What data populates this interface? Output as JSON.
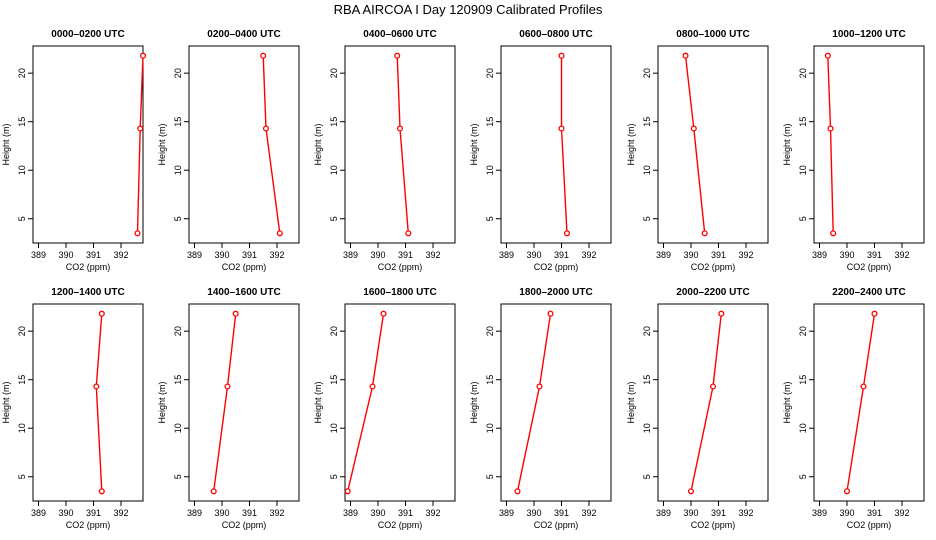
{
  "figure": {
    "title": "RBA AIRCOA I  Day 120909  Calibrated Profiles"
  },
  "colors": {
    "series": "#ff0000",
    "axis": "#000000",
    "background": "#ffffff"
  },
  "chart_data": [
    {
      "type": "line",
      "title": "0000–0200 UTC",
      "xlabel": "CO2 (ppm)",
      "ylabel": "Height (m)",
      "xlim": [
        388.8,
        392.8
      ],
      "ylim": [
        2.5,
        22.8
      ],
      "xticks": [
        "389",
        "390",
        "391",
        "392"
      ],
      "yticks": [
        "5",
        "10",
        "15",
        "20"
      ],
      "x": [
        392.6,
        392.7,
        392.8
      ],
      "y": [
        3.5,
        14.3,
        21.8
      ]
    },
    {
      "type": "line",
      "title": "0200–0400 UTC",
      "xlabel": "CO2 (ppm)",
      "ylabel": "Height (m)",
      "xlim": [
        388.8,
        392.8
      ],
      "ylim": [
        2.5,
        22.8
      ],
      "xticks": [
        "389",
        "390",
        "391",
        "392"
      ],
      "yticks": [
        "5",
        "10",
        "15",
        "20"
      ],
      "x": [
        392.1,
        391.6,
        391.5
      ],
      "y": [
        3.5,
        14.3,
        21.8
      ]
    },
    {
      "type": "line",
      "title": "0400–0600 UTC",
      "xlabel": "CO2 (ppm)",
      "ylabel": "Height (m)",
      "xlim": [
        388.8,
        392.8
      ],
      "ylim": [
        2.5,
        22.8
      ],
      "xticks": [
        "389",
        "390",
        "391",
        "392"
      ],
      "yticks": [
        "5",
        "10",
        "15",
        "20"
      ],
      "x": [
        391.1,
        390.8,
        390.7
      ],
      "y": [
        3.5,
        14.3,
        21.8
      ]
    },
    {
      "type": "line",
      "title": "0600–0800 UTC",
      "xlabel": "CO2 (ppm)",
      "ylabel": "Height (m)",
      "xlim": [
        388.8,
        392.8
      ],
      "ylim": [
        2.5,
        22.8
      ],
      "xticks": [
        "389",
        "390",
        "391",
        "392"
      ],
      "yticks": [
        "5",
        "10",
        "15",
        "20"
      ],
      "x": [
        391.2,
        391.0,
        391.0
      ],
      "y": [
        3.5,
        14.3,
        21.8
      ]
    },
    {
      "type": "line",
      "title": "0800–1000 UTC",
      "xlabel": "CO2 (ppm)",
      "ylabel": "Height (m)",
      "xlim": [
        388.8,
        392.8
      ],
      "ylim": [
        2.5,
        22.8
      ],
      "xticks": [
        "389",
        "390",
        "391",
        "392"
      ],
      "yticks": [
        "5",
        "10",
        "15",
        "20"
      ],
      "x": [
        390.5,
        390.1,
        389.8
      ],
      "y": [
        3.5,
        14.3,
        21.8
      ]
    },
    {
      "type": "line",
      "title": "1000–1200 UTC",
      "xlabel": "CO2 (ppm)",
      "ylabel": "Height (m)",
      "xlim": [
        388.8,
        392.8
      ],
      "ylim": [
        2.5,
        22.8
      ],
      "xticks": [
        "389",
        "390",
        "391",
        "392"
      ],
      "yticks": [
        "5",
        "10",
        "15",
        "20"
      ],
      "x": [
        389.5,
        389.4,
        389.3
      ],
      "y": [
        3.5,
        14.3,
        21.8
      ]
    },
    {
      "type": "line",
      "title": "1200–1400 UTC",
      "xlabel": "CO2 (ppm)",
      "ylabel": "Height (m)",
      "xlim": [
        388.8,
        392.8
      ],
      "ylim": [
        2.5,
        22.8
      ],
      "xticks": [
        "389",
        "390",
        "391",
        "392"
      ],
      "yticks": [
        "5",
        "10",
        "15",
        "20"
      ],
      "x": [
        391.3,
        391.1,
        391.3
      ],
      "y": [
        3.5,
        14.3,
        21.8
      ]
    },
    {
      "type": "line",
      "title": "1400–1600 UTC",
      "xlabel": "CO2 (ppm)",
      "ylabel": "Height (m)",
      "xlim": [
        388.8,
        392.8
      ],
      "ylim": [
        2.5,
        22.8
      ],
      "xticks": [
        "389",
        "390",
        "391",
        "392"
      ],
      "yticks": [
        "5",
        "10",
        "15",
        "20"
      ],
      "x": [
        389.7,
        390.2,
        390.5
      ],
      "y": [
        3.5,
        14.3,
        21.8
      ]
    },
    {
      "type": "line",
      "title": "1600–1800 UTC",
      "xlabel": "CO2 (ppm)",
      "ylabel": "Height (m)",
      "xlim": [
        388.8,
        392.8
      ],
      "ylim": [
        2.5,
        22.8
      ],
      "xticks": [
        "389",
        "390",
        "391",
        "392"
      ],
      "yticks": [
        "5",
        "10",
        "15",
        "20"
      ],
      "x": [
        388.9,
        389.8,
        390.2
      ],
      "y": [
        3.5,
        14.3,
        21.8
      ]
    },
    {
      "type": "line",
      "title": "1800–2000 UTC",
      "xlabel": "CO2 (ppm)",
      "ylabel": "Height (m)",
      "xlim": [
        388.8,
        392.8
      ],
      "ylim": [
        2.5,
        22.8
      ],
      "xticks": [
        "389",
        "390",
        "391",
        "392"
      ],
      "yticks": [
        "5",
        "10",
        "15",
        "20"
      ],
      "x": [
        389.4,
        390.2,
        390.6
      ],
      "y": [
        3.5,
        14.3,
        21.8
      ]
    },
    {
      "type": "line",
      "title": "2000–2200 UTC",
      "xlabel": "CO2 (ppm)",
      "ylabel": "Height (m)",
      "xlim": [
        388.8,
        392.8
      ],
      "ylim": [
        2.5,
        22.8
      ],
      "xticks": [
        "389",
        "390",
        "391",
        "392"
      ],
      "yticks": [
        "5",
        "10",
        "15",
        "20"
      ],
      "x": [
        390.0,
        390.8,
        391.1
      ],
      "y": [
        3.5,
        14.3,
        21.8
      ]
    },
    {
      "type": "line",
      "title": "2200–2400 UTC",
      "xlabel": "CO2 (ppm)",
      "ylabel": "Height (m)",
      "xlim": [
        388.8,
        392.8
      ],
      "ylim": [
        2.5,
        22.8
      ],
      "xticks": [
        "389",
        "390",
        "391",
        "392"
      ],
      "yticks": [
        "5",
        "10",
        "15",
        "20"
      ],
      "x": [
        390.0,
        390.6,
        391.0
      ],
      "y": [
        3.5,
        14.3,
        21.8
      ]
    }
  ]
}
